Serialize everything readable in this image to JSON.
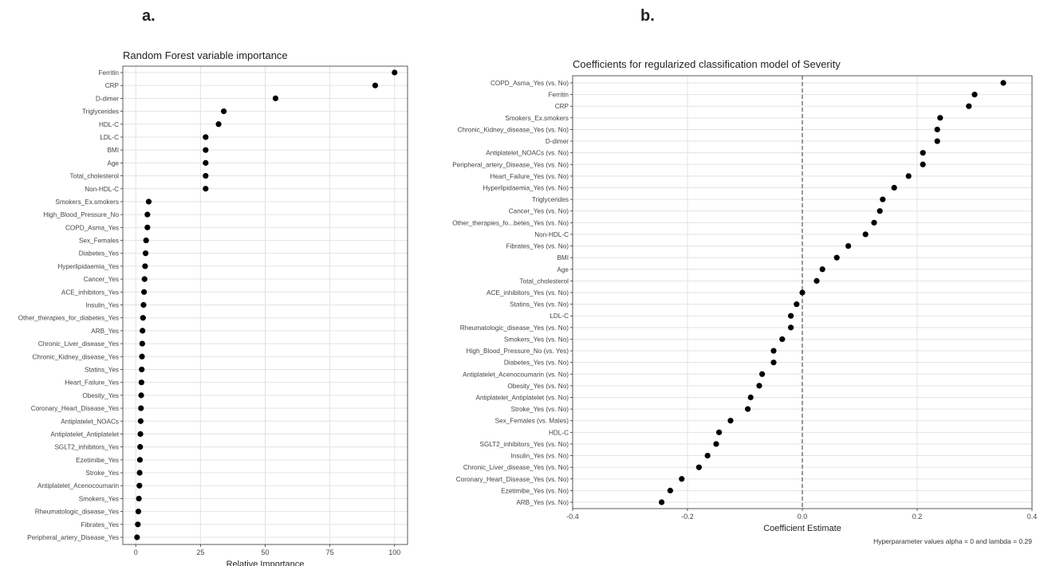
{
  "panels": {
    "a_label": "a.",
    "b_label": "b."
  },
  "chart_data": [
    {
      "type": "scatter",
      "title": "Random Forest variable importance",
      "xlabel": "Relative Importance",
      "ylabel": "",
      "xlim": [
        -5,
        105
      ],
      "x_ticks": [
        0,
        25,
        50,
        75,
        100
      ],
      "grid": true,
      "categories": [
        "Ferritin",
        "CRP",
        "D-dimer",
        "Triglycerides",
        "HDL-C",
        "LDL-C",
        "BMI",
        "Age",
        "Total_cholesterol",
        "Non-HDL-C",
        "Smokers_Ex.smokers",
        "High_Blood_Pressure_No",
        "COPD_Asma_Yes",
        "Sex_Females",
        "Diabetes_Yes",
        "Hyperlipidaemia_Yes",
        "Cancer_Yes",
        "ACE_inhibitors_Yes",
        "Insulin_Yes",
        "Other_therapies_for_diabetes_Yes",
        "ARB_Yes",
        "Chronic_Liver_disease_Yes",
        "Chronic_Kidney_disease_Yes",
        "Statins_Yes",
        "Heart_Failure_Yes",
        "Obesity_Yes",
        "Coronary_Heart_Disease_Yes",
        "Antiplatelet_NOACs",
        "Antiplatelet_Antiplatelet",
        "SGLT2_inhibitors_Yes",
        "Ezetimibe_Yes",
        "Stroke_Yes",
        "Antiplatelet_Acenocoumarin",
        "Smokers_Yes",
        "Rheumatologic_disease_Yes",
        "Fibrates_Yes",
        "Peripheral_artery_Disease_Yes"
      ],
      "values": [
        100,
        92.5,
        54,
        34,
        32,
        27,
        27,
        27,
        27,
        27,
        5,
        4.5,
        4.5,
        4,
        3.8,
        3.6,
        3.4,
        3.2,
        3,
        2.8,
        2.6,
        2.5,
        2.4,
        2.3,
        2.2,
        2.1,
        2,
        1.9,
        1.8,
        1.7,
        1.6,
        1.5,
        1.4,
        1.2,
        1,
        0.8,
        0.5
      ]
    },
    {
      "type": "scatter",
      "title": "Coefficients for regularized classification model of Severity",
      "xlabel": "Coefficient Estimate",
      "ylabel": "",
      "xlim": [
        -0.4,
        0.4
      ],
      "x_ticks": [
        -0.4,
        -0.2,
        0,
        0.2,
        0.4
      ],
      "x_tick_labels": [
        "-0.4",
        "-0.2",
        "0.0",
        "0.2",
        "0.4"
      ],
      "grid": true,
      "reference_line": 0,
      "annotation": "Hyperparameter values alpha = 0 and lambda = 0.29",
      "categories": [
        "COPD_Asma_Yes (vs. No)",
        "Ferritin",
        "CRP",
        "Smokers_Ex.smokers",
        "Chronic_Kidney_disease_Yes (vs. No)",
        "D-dimer",
        "Antiplatelet_NOACs (vs. No)",
        "Peripheral_artery_Disease_Yes (vs. No)",
        "Heart_Failure_Yes (vs. No)",
        "Hyperlipidaemia_Yes (vs. No)",
        "Triglycerides",
        "Cancer_Yes (vs. No)",
        "Other_therapies_fo...betes_Yes (vs. No)",
        "Non-HDL-C",
        "Fibrates_Yes (vs. No)",
        "BMI",
        "Age",
        "Total_cholesterol",
        "ACE_inhibitors_Yes (vs. No)",
        "Statins_Yes (vs. No)",
        "LDL-C",
        "Rheumatologic_disease_Yes (vs. No)",
        "Smokers_Yes (vs. No)",
        "High_Blood_Pressure_No (vs. Yes)",
        "Diabetes_Yes (vs. No)",
        "Antiplatelet_Acenocoumarin (vs. No)",
        "Obesity_Yes (vs. No)",
        "Antiplatelet_Antiplatelet (vs. No)",
        "Stroke_Yes (vs. No)",
        "Sex_Females (vs. Males)",
        "HDL-C",
        "SGLT2_inhibitors_Yes (vs. No)",
        "Insulin_Yes (vs. No)",
        "Chronic_Liver_disease_Yes (vs. No)",
        "Coronary_Heart_Disease_Yes (vs. No)",
        "Ezetimibe_Yes (vs. No)",
        "ARB_Yes (vs. No)"
      ],
      "values": [
        0.35,
        0.3,
        0.29,
        0.24,
        0.235,
        0.235,
        0.21,
        0.21,
        0.185,
        0.16,
        0.14,
        0.135,
        0.125,
        0.11,
        0.08,
        0.06,
        0.035,
        0.025,
        0.0,
        -0.01,
        -0.02,
        -0.02,
        -0.035,
        -0.05,
        -0.05,
        -0.07,
        -0.075,
        -0.09,
        -0.095,
        -0.125,
        -0.145,
        -0.15,
        -0.165,
        -0.18,
        -0.21,
        -0.23,
        -0.245
      ]
    }
  ]
}
